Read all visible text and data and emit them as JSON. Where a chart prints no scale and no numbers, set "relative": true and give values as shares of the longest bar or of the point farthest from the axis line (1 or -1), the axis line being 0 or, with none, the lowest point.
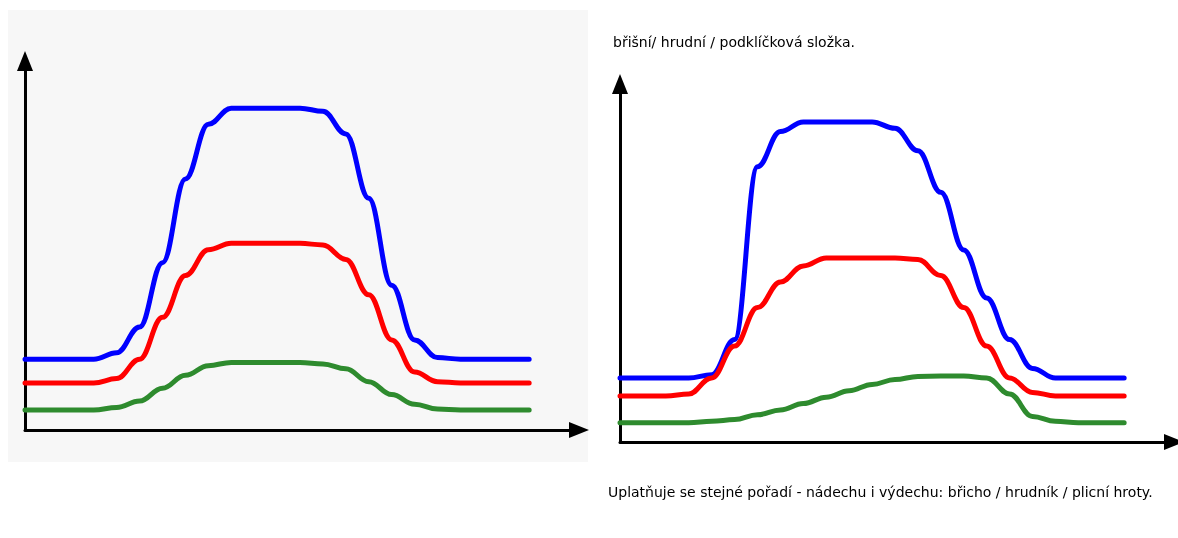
{
  "chart_data": [
    {
      "type": "line",
      "relative": true,
      "categories": [
        null,
        null,
        null,
        null,
        null,
        null,
        null,
        null,
        null,
        null,
        null,
        null,
        null,
        null,
        null,
        null,
        null,
        null,
        null,
        null,
        null,
        null,
        null,
        null,
        null
      ],
      "series": [
        {
          "color": "#0000ff",
          "values": [
            0.22,
            0.22,
            0.22,
            0.22,
            0.24,
            0.32,
            0.52,
            0.78,
            0.95,
            1,
            1,
            1,
            1,
            0.99,
            0.92,
            0.72,
            0.45,
            0.28,
            0.225,
            0.22,
            0.22,
            0.22,
            0.22,
            null,
            null
          ]
        },
        {
          "color": "#ff0000",
          "values": [
            0.146,
            0.146,
            0.146,
            0.146,
            0.16,
            0.22,
            0.35,
            0.48,
            0.56,
            0.58,
            0.58,
            0.58,
            0.58,
            0.575,
            0.53,
            0.42,
            0.28,
            0.18,
            0.15,
            0.146,
            0.146,
            0.146,
            0.146,
            null,
            null
          ]
        },
        {
          "color": "#2e8b2e",
          "values": [
            0.062,
            0.062,
            0.062,
            0.062,
            0.07,
            0.09,
            0.13,
            0.17,
            0.2,
            0.21,
            0.21,
            0.21,
            0.21,
            0.205,
            0.19,
            0.15,
            0.11,
            0.08,
            0.065,
            0.062,
            0.062,
            0.062,
            0.062,
            null,
            null
          ]
        }
      ],
      "grid": false
    },
    {
      "type": "line",
      "relative": true,
      "title": "břišní/ hrudní / podklíčková složka.",
      "annotations": [
        "Uplatňuje se stejné pořadí - nádechu i výdechu: břicho / hrudník / plicní hroty."
      ],
      "categories": [
        null,
        null,
        null,
        null,
        null,
        null,
        null,
        null,
        null,
        null,
        null,
        null,
        null,
        null,
        null,
        null,
        null,
        null,
        null,
        null,
        null,
        null,
        null,
        null,
        null
      ],
      "series": [
        {
          "color": "#0000ff",
          "values": [
            0.2,
            0.2,
            0.2,
            0.2,
            0.21,
            0.32,
            0.86,
            0.97,
            1,
            1,
            1,
            1,
            0.98,
            0.91,
            0.78,
            0.6,
            0.45,
            0.32,
            0.23,
            0.2,
            0.2,
            0.2,
            0.2,
            null,
            null
          ]
        },
        {
          "color": "#ff0000",
          "values": [
            0.144,
            0.144,
            0.144,
            0.15,
            0.2,
            0.3,
            0.42,
            0.5,
            0.55,
            0.575,
            0.575,
            0.575,
            0.575,
            0.57,
            0.52,
            0.42,
            0.3,
            0.2,
            0.155,
            0.144,
            0.144,
            0.144,
            0.144,
            null,
            null
          ]
        },
        {
          "color": "#2e8b2e",
          "values": [
            0.06,
            0.06,
            0.06,
            0.06,
            0.065,
            0.07,
            0.085,
            0.1,
            0.12,
            0.14,
            0.16,
            0.18,
            0.195,
            0.205,
            0.206,
            0.206,
            0.2,
            0.15,
            0.08,
            0.065,
            0.06,
            0.06,
            0.06,
            null,
            null
          ]
        }
      ],
      "grid": false
    }
  ]
}
